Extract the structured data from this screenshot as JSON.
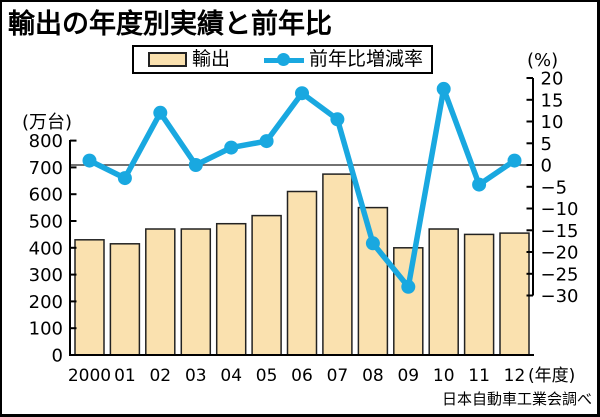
{
  "title": "輸出の年度別実績と前年比",
  "legend": {
    "bar_label": "輸出",
    "line_label": "前年比増減率"
  },
  "axes": {
    "left_unit": "(万台)",
    "right_unit": "(%)",
    "x_suffix": "(年度)",
    "left_ticks": [
      800,
      700,
      600,
      500,
      400,
      300,
      200,
      100,
      0
    ],
    "right_ticks": [
      20,
      15,
      10,
      5,
      0,
      -5,
      -10,
      -15,
      -20,
      -25,
      -30
    ]
  },
  "source": "日本自動車工業会調べ",
  "colors": {
    "bar_fill": "#FAE1AF",
    "bar_border": "#222222",
    "line": "#19A8E0",
    "zero_line": "#444444",
    "axis": "#000000"
  },
  "chart_data": {
    "type": "bar+line combo",
    "title": "輸出の年度別実績と前年比",
    "categories": [
      "2000",
      "01",
      "02",
      "03",
      "04",
      "05",
      "06",
      "07",
      "08",
      "09",
      "10",
      "11",
      "12"
    ],
    "x_label_suffix": "(年度)",
    "series": [
      {
        "name": "輸出",
        "type": "bar",
        "axis": "left",
        "unit": "万台",
        "values": [
          430,
          415,
          470,
          470,
          490,
          520,
          610,
          675,
          550,
          400,
          470,
          450,
          455
        ]
      },
      {
        "name": "前年比増減率",
        "type": "line",
        "axis": "right",
        "unit": "%",
        "values": [
          1,
          -3,
          12,
          0,
          4,
          5.5,
          16.5,
          10.5,
          -18,
          -28,
          17.5,
          -4.5,
          1
        ]
      }
    ],
    "left_axis": {
      "unit": "万台",
      "min": 0,
      "max": 800,
      "tick_step": 100
    },
    "right_axis": {
      "unit": "%",
      "min": -30,
      "max": 20,
      "tick_step": 5
    },
    "grid": "off",
    "legend_position": "top-center",
    "zero_line": true
  }
}
